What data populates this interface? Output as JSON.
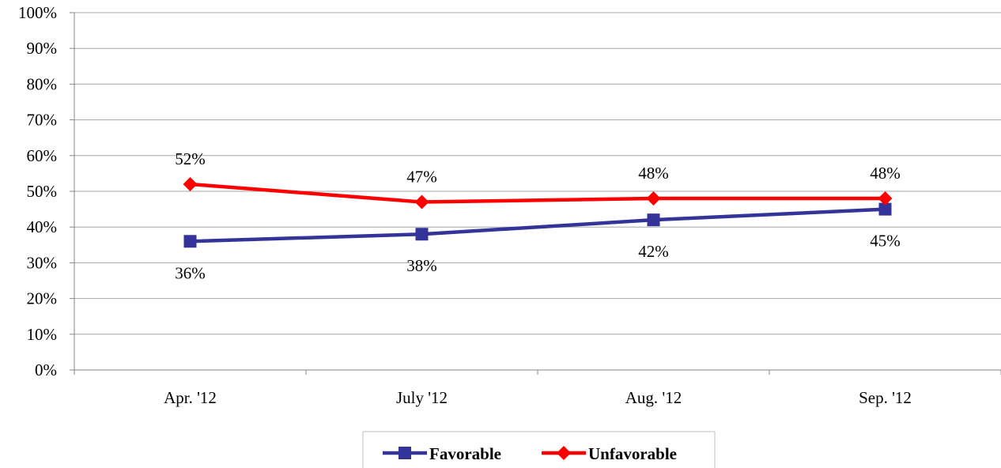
{
  "chart_data": {
    "type": "line",
    "categories": [
      "Apr. '12",
      "July '12",
      "Aug. '12",
      "Sep. '12"
    ],
    "series": [
      {
        "name": "Favorable",
        "values": [
          36,
          38,
          42,
          45
        ],
        "labels": [
          "36%",
          "38%",
          "42%",
          "45%"
        ],
        "color": "#333399",
        "marker": "square"
      },
      {
        "name": "Unfavorable",
        "values": [
          52,
          47,
          48,
          48
        ],
        "labels": [
          "52%",
          "47%",
          "48%",
          "48%"
        ],
        "color": "#ff0000",
        "marker": "diamond"
      }
    ],
    "ylim": [
      0,
      100
    ],
    "yticks": [
      "0%",
      "10%",
      "20%",
      "30%",
      "40%",
      "50%",
      "60%",
      "70%",
      "80%",
      "90%",
      "100%"
    ],
    "grid": true,
    "legend_position": "bottom"
  }
}
